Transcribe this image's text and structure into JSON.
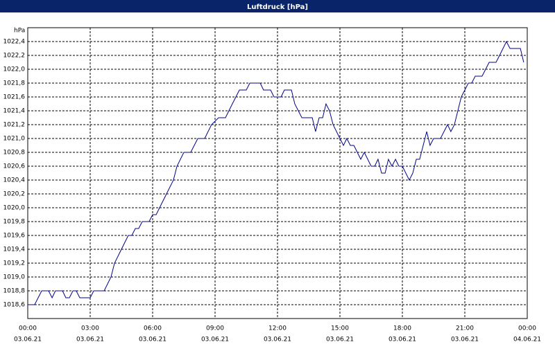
{
  "chart_data": {
    "type": "line",
    "title": "Luftdruck [hPa]",
    "ylabel": "hPa",
    "color": "#00008b",
    "grid": true,
    "xlim": [
      0,
      24
    ],
    "ylim": [
      1018.4,
      1022.6
    ],
    "xticks": [
      {
        "value": 0,
        "label": "00:00"
      },
      {
        "value": 3,
        "label": "03:00"
      },
      {
        "value": 6,
        "label": "06:00"
      },
      {
        "value": 9,
        "label": "09:00"
      },
      {
        "value": 12,
        "label": "12:00"
      },
      {
        "value": 15,
        "label": "15:00"
      },
      {
        "value": 18,
        "label": "18:00"
      },
      {
        "value": 21,
        "label": "21:00"
      },
      {
        "value": 24,
        "label": "00:00"
      }
    ],
    "xtick_dates": [
      "03.06.21",
      "03.06.21",
      "03.06.21",
      "03.06.21",
      "03.06.21",
      "03.06.21",
      "03.06.21",
      "03.06.21",
      "04.06.21"
    ],
    "yticks": [
      {
        "value": 1018.6,
        "label": "1018,6"
      },
      {
        "value": 1018.8,
        "label": "1018,8"
      },
      {
        "value": 1019.0,
        "label": "1019,0"
      },
      {
        "value": 1019.2,
        "label": "1019,2"
      },
      {
        "value": 1019.4,
        "label": "1019,4"
      },
      {
        "value": 1019.6,
        "label": "1019,6"
      },
      {
        "value": 1019.8,
        "label": "1019,8"
      },
      {
        "value": 1020.0,
        "label": "1020,0"
      },
      {
        "value": 1020.2,
        "label": "1020,2"
      },
      {
        "value": 1020.4,
        "label": "1020,4"
      },
      {
        "value": 1020.6,
        "label": "1020,6"
      },
      {
        "value": 1020.8,
        "label": "1020,8"
      },
      {
        "value": 1021.0,
        "label": "1021,0"
      },
      {
        "value": 1021.2,
        "label": "1021,2"
      },
      {
        "value": 1021.4,
        "label": "1021,4"
      },
      {
        "value": 1021.6,
        "label": "1021,6"
      },
      {
        "value": 1021.8,
        "label": "1021,8"
      },
      {
        "value": 1022.0,
        "label": "1022,0"
      },
      {
        "value": 1022.2,
        "label": "1022,2"
      },
      {
        "value": 1022.4,
        "label": "1022,4"
      }
    ],
    "x": [
      0,
      0.33,
      0.67,
      1,
      1.17,
      1.33,
      1.67,
      1.83,
      2,
      2.17,
      2.33,
      2.5,
      3,
      3.17,
      3.67,
      4,
      4.17,
      4.5,
      4.83,
      5,
      5.17,
      5.33,
      5.5,
      5.83,
      6,
      6.17,
      6.5,
      7,
      7.17,
      7.5,
      7.83,
      8.17,
      8.5,
      8.83,
      9.17,
      9.5,
      9.83,
      10.17,
      10.5,
      10.67,
      11.17,
      11.33,
      11.67,
      11.83,
      12.17,
      12.33,
      12.67,
      12.83,
      13.17,
      13.67,
      13.83,
      14,
      14.17,
      14.33,
      14.5,
      14.67,
      15,
      15.17,
      15.33,
      15.5,
      15.67,
      16,
      16.17,
      16.5,
      16.67,
      16.83,
      17,
      17.17,
      17.33,
      17.5,
      17.67,
      17.83,
      18,
      18.33,
      18.5,
      18.67,
      18.83,
      19.17,
      19.33,
      19.5,
      19.83,
      20,
      20.17,
      20.33,
      20.5,
      20.83,
      21,
      21.17,
      21.33,
      21.5,
      21.83,
      22.17,
      22.5,
      22.67,
      23,
      23.17,
      23.67,
      23.83
    ],
    "values": [
      1018.6,
      1018.6,
      1018.8,
      1018.8,
      1018.7,
      1018.8,
      1018.8,
      1018.7,
      1018.7,
      1018.8,
      1018.8,
      1018.7,
      1018.7,
      1018.8,
      1018.8,
      1019.0,
      1019.2,
      1019.4,
      1019.6,
      1019.6,
      1019.7,
      1019.7,
      1019.8,
      1019.8,
      1019.9,
      1019.9,
      1020.1,
      1020.4,
      1020.6,
      1020.8,
      1020.8,
      1021.0,
      1021.0,
      1021.2,
      1021.3,
      1021.3,
      1021.5,
      1021.7,
      1021.7,
      1021.8,
      1021.8,
      1021.7,
      1021.7,
      1021.6,
      1021.6,
      1021.7,
      1021.7,
      1021.5,
      1021.3,
      1021.3,
      1021.1,
      1021.3,
      1021.3,
      1021.5,
      1021.4,
      1021.2,
      1021.0,
      1020.9,
      1021.0,
      1020.9,
      1020.9,
      1020.7,
      1020.8,
      1020.6,
      1020.6,
      1020.7,
      1020.5,
      1020.5,
      1020.7,
      1020.6,
      1020.7,
      1020.6,
      1020.6,
      1020.4,
      1020.5,
      1020.7,
      1020.7,
      1021.1,
      1020.9,
      1021.0,
      1021.0,
      1021.1,
      1021.2,
      1021.1,
      1021.2,
      1021.6,
      1021.7,
      1021.8,
      1021.8,
      1021.9,
      1021.9,
      1022.1,
      1022.1,
      1022.2,
      1022.4,
      1022.3,
      1022.3,
      1022.1
    ]
  }
}
